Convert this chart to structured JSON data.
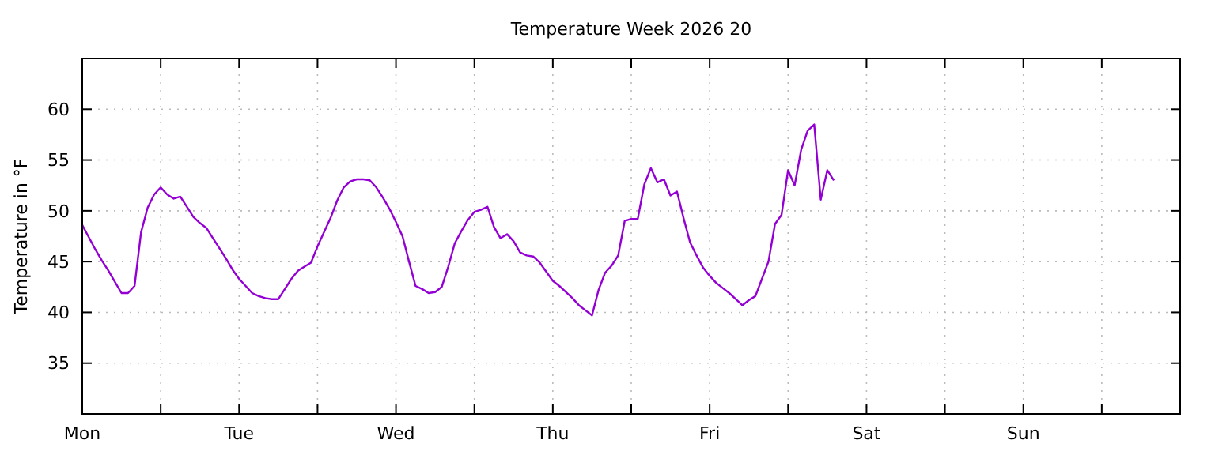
{
  "chart_data": {
    "type": "line",
    "title": "Temperature Week 2026 20",
    "ylabel": "Temperature in °F",
    "categories": [
      "Mon",
      null,
      null,
      null,
      null,
      null,
      null,
      null,
      null,
      null,
      null,
      null,
      null,
      null,
      null,
      null,
      null,
      null,
      null,
      null,
      null,
      null,
      null,
      null,
      "Tue",
      null,
      null,
      null,
      null,
      null,
      null,
      null,
      null,
      null,
      null,
      null,
      null,
      null,
      null,
      null,
      null,
      null,
      null,
      null,
      null,
      null,
      null,
      null,
      "Wed",
      null,
      null,
      null,
      null,
      null,
      null,
      null,
      null,
      null,
      null,
      null,
      null,
      null,
      null,
      null,
      null,
      null,
      null,
      null,
      null,
      null,
      null,
      null,
      "Thu",
      null,
      null,
      null,
      null,
      null,
      null,
      null,
      null,
      null,
      null,
      null,
      null,
      null,
      null,
      null,
      null,
      null,
      null,
      null,
      null,
      null,
      null,
      null,
      "Fri",
      null,
      null,
      null,
      null,
      null,
      null,
      null,
      null,
      null,
      null,
      null,
      null,
      null,
      null,
      null,
      null,
      null,
      null,
      null,
      null,
      null,
      null,
      null,
      "Sat",
      null,
      null,
      null,
      null,
      null,
      null,
      null,
      null,
      null,
      null,
      null,
      null,
      null,
      null,
      null,
      null,
      null,
      null,
      null,
      null,
      null,
      null,
      null,
      "Sun",
      null,
      null,
      null,
      null,
      null,
      null,
      null,
      null,
      null,
      null,
      null,
      null,
      null,
      null,
      null,
      null,
      null,
      null,
      null,
      null,
      null,
      null,
      null,
      null
    ],
    "ylim": [
      30,
      65
    ],
    "yticks": [
      35,
      40,
      45,
      50,
      55,
      60
    ],
    "grid": true,
    "line_style": "solid",
    "series": [
      {
        "color": "#9400d3",
        "values": [
          48.6,
          47.4,
          46.2,
          45.1,
          44.1,
          43.0,
          41.9,
          41.9,
          42.6,
          47.9,
          50.3,
          51.6,
          52.3,
          51.6,
          51.2,
          51.4,
          50.4,
          49.4,
          48.8,
          48.3,
          47.3,
          46.3,
          45.3,
          44.2,
          43.3,
          42.6,
          41.9,
          41.6,
          41.4,
          41.3,
          41.3,
          42.3,
          43.3,
          44.1,
          44.5,
          44.9,
          46.5,
          47.9,
          49.3,
          51.0,
          52.3,
          52.9,
          53.1,
          53.1,
          53.0,
          52.3,
          51.3,
          50.2,
          48.9,
          47.5,
          45.0,
          42.6,
          42.3,
          41.9,
          42.0,
          42.5,
          44.5,
          46.8,
          48.0,
          49.1,
          49.9,
          50.1,
          50.4,
          48.4,
          47.3,
          47.7,
          47.0,
          45.9,
          45.6,
          45.5,
          44.9,
          44.0,
          43.1,
          42.6,
          42.0,
          41.4,
          40.7,
          40.2,
          39.7,
          42.2,
          43.9,
          44.6,
          45.6,
          49.0,
          49.2,
          49.2,
          52.6,
          54.2,
          52.8,
          53.1,
          51.5,
          51.9,
          49.3,
          46.9,
          45.6,
          44.4,
          43.6,
          42.9,
          42.4,
          41.9,
          41.3,
          40.7,
          41.2,
          41.6,
          43.3,
          45.0,
          48.7,
          49.6,
          54.0,
          52.5,
          56.0,
          57.9,
          58.5,
          51.1,
          54.0,
          53.0,
          null,
          null,
          null,
          null,
          null,
          null,
          null,
          null,
          null,
          null,
          null,
          null,
          null,
          null,
          null,
          null,
          null,
          null,
          null,
          null,
          null,
          null,
          null,
          null,
          null,
          null,
          null,
          null,
          null,
          null,
          null,
          null,
          null,
          null,
          null,
          null,
          null,
          null,
          null,
          null,
          null,
          null,
          null,
          null,
          null,
          null,
          null,
          null,
          null,
          null,
          null,
          null,
          null
        ]
      }
    ]
  }
}
